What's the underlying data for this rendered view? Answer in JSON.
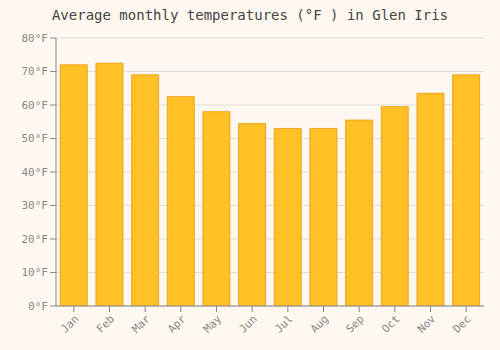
{
  "chart_data": {
    "type": "bar",
    "title": "Average monthly temperatures (°F ) in Glen Iris",
    "categories": [
      "Jan",
      "Feb",
      "Mar",
      "Apr",
      "May",
      "Jun",
      "Jul",
      "Aug",
      "Sep",
      "Oct",
      "Nov",
      "Dec"
    ],
    "values": [
      72,
      72.5,
      69,
      62.5,
      58,
      54.5,
      53,
      53,
      55.5,
      59.5,
      63.5,
      69
    ],
    "color": "#FFC125",
    "ylim": [
      0,
      80
    ],
    "yticks": [
      {
        "value": 0,
        "label": "0°F"
      },
      {
        "value": 10,
        "label": "10°F"
      },
      {
        "value": 20,
        "label": "20°F"
      },
      {
        "value": 30,
        "label": "30°F"
      },
      {
        "value": 40,
        "label": "40°F"
      },
      {
        "value": 50,
        "label": "50°F"
      },
      {
        "value": 60,
        "label": "60°F"
      },
      {
        "value": 70,
        "label": "70°F"
      },
      {
        "value": 80,
        "label": "80°F"
      }
    ],
    "grid": true
  }
}
